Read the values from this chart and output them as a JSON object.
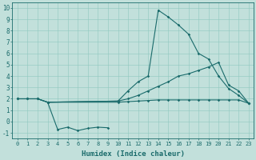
{
  "xlabel": "Humidex (Indice chaleur)",
  "xlim": [
    -0.5,
    23.5
  ],
  "ylim": [
    -1.5,
    10.5
  ],
  "xticks": [
    0,
    1,
    2,
    3,
    4,
    5,
    6,
    7,
    8,
    9,
    10,
    11,
    12,
    13,
    14,
    15,
    16,
    17,
    18,
    19,
    20,
    21,
    22,
    23
  ],
  "yticks": [
    -1,
    0,
    1,
    2,
    3,
    4,
    5,
    6,
    7,
    8,
    9,
    10
  ],
  "bg_color": "#c2e0db",
  "line_color": "#1a6b6b",
  "series_peak": {
    "x": [
      0,
      1,
      2,
      3,
      10,
      11,
      12,
      13,
      14,
      15,
      16,
      17,
      18,
      19,
      20,
      21,
      22,
      23
    ],
    "y": [
      2.0,
      2.0,
      2.0,
      1.7,
      1.8,
      2.7,
      3.5,
      4.0,
      9.8,
      9.2,
      8.5,
      7.7,
      6.0,
      5.5,
      4.0,
      2.9,
      2.3,
      1.6
    ]
  },
  "series_mid": {
    "x": [
      0,
      1,
      2,
      3,
      10,
      11,
      12,
      13,
      14,
      15,
      16,
      17,
      18,
      19,
      20,
      21,
      22,
      23
    ],
    "y": [
      2.0,
      2.0,
      2.0,
      1.7,
      1.8,
      2.0,
      2.3,
      2.7,
      3.1,
      3.5,
      4.0,
      4.2,
      4.5,
      4.8,
      5.2,
      3.2,
      2.7,
      1.6
    ]
  },
  "series_flat": {
    "x": [
      0,
      1,
      2,
      3,
      10,
      11,
      12,
      13,
      14,
      15,
      16,
      17,
      18,
      19,
      20,
      21,
      22,
      23
    ],
    "y": [
      2.0,
      2.0,
      2.0,
      1.7,
      1.7,
      1.75,
      1.8,
      1.85,
      1.9,
      1.9,
      1.9,
      1.9,
      1.9,
      1.9,
      1.9,
      1.9,
      1.9,
      1.6
    ]
  },
  "series_dip": {
    "x": [
      3,
      4,
      5,
      6,
      7,
      8,
      9
    ],
    "y": [
      1.7,
      -0.7,
      -0.5,
      -0.8,
      -0.6,
      -0.5,
      -0.55
    ]
  }
}
